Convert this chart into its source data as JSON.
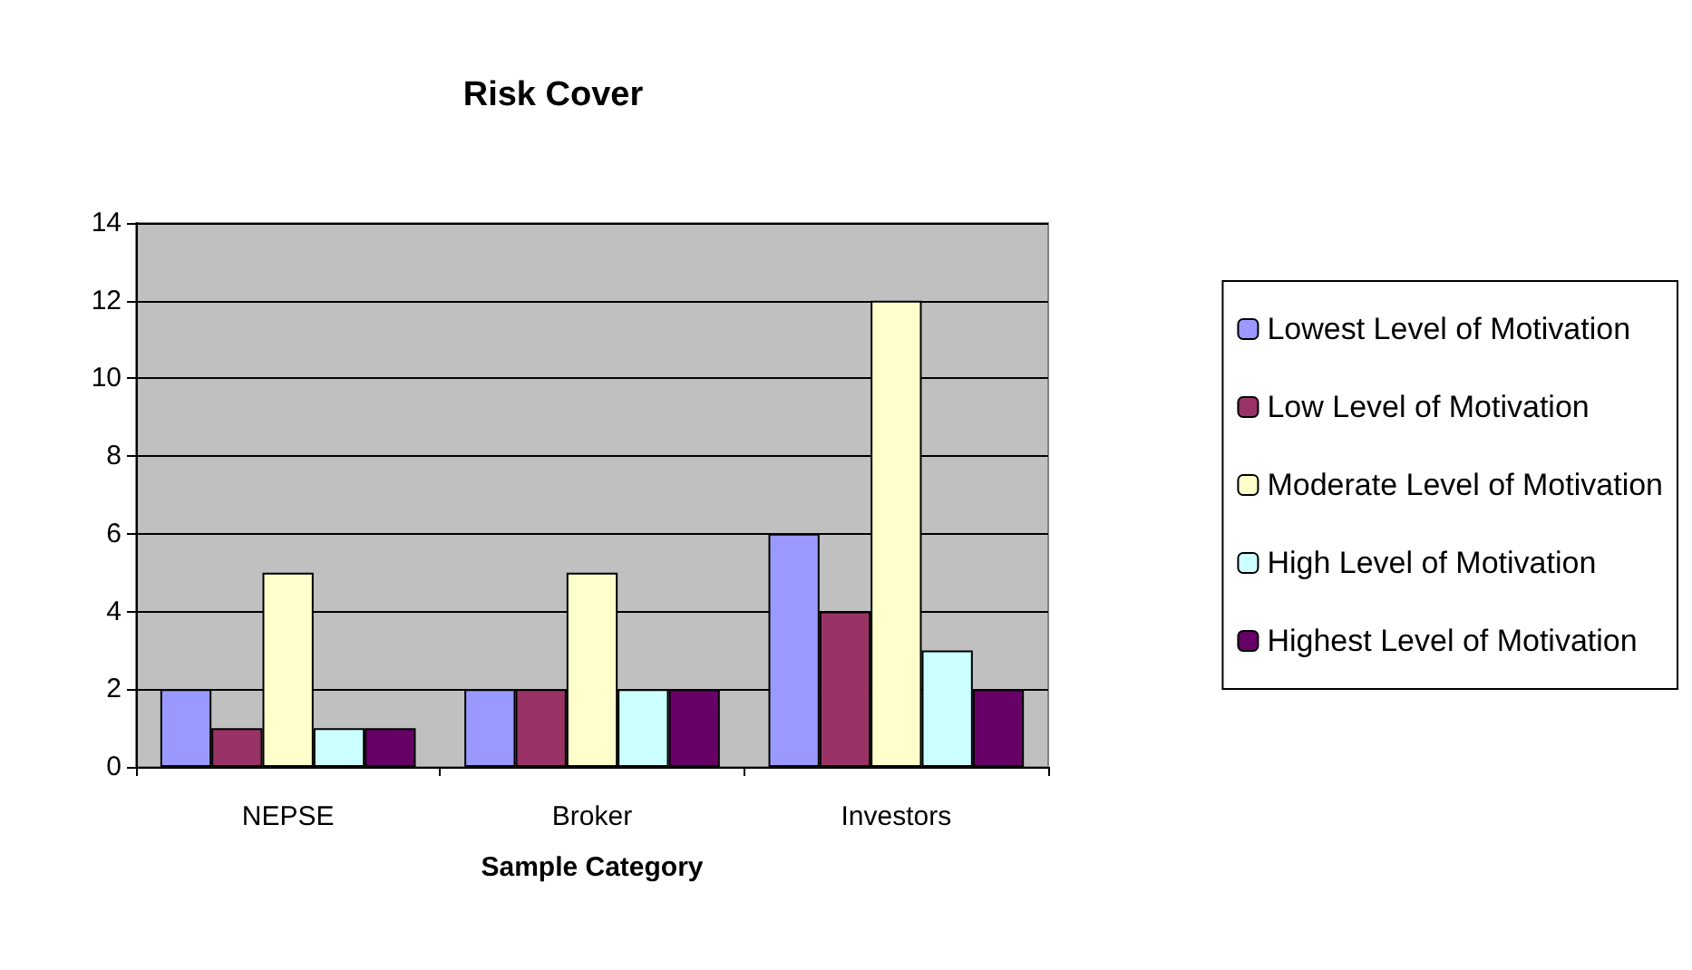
{
  "chart_data": {
    "type": "bar",
    "title": "Risk Cover",
    "xlabel": "Sample Category",
    "categories": [
      "NEPSE",
      "Broker",
      "Investors"
    ],
    "series": [
      {
        "name": "Lowest Level of Motivation",
        "color": "#9999ff",
        "values": [
          2,
          2,
          6
        ]
      },
      {
        "name": "Low Level of Motivation",
        "color": "#993366",
        "values": [
          1,
          2,
          4
        ]
      },
      {
        "name": "Moderate Level of Motivation",
        "color": "#ffffcc",
        "values": [
          5,
          5,
          12
        ]
      },
      {
        "name": "High Level of Motivation",
        "color": "#ccffff",
        "values": [
          1,
          2,
          3
        ]
      },
      {
        "name": "Highest Level of Motivation",
        "color": "#660066",
        "values": [
          1,
          2,
          2
        ]
      }
    ],
    "ylim": [
      0,
      14
    ],
    "yticks": [
      0,
      2,
      4,
      6,
      8,
      10,
      12,
      14
    ],
    "grid": "y",
    "legend": "right"
  }
}
